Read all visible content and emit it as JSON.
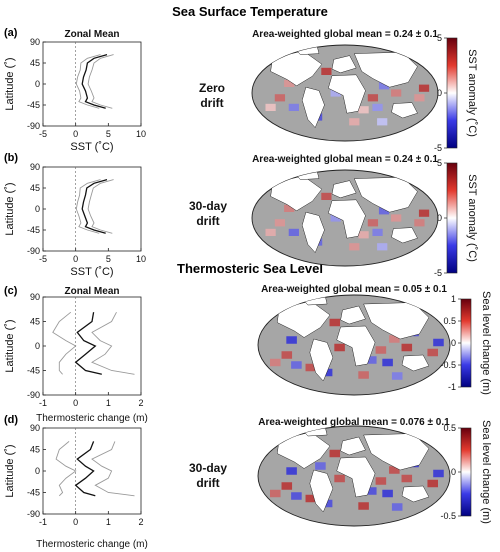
{
  "sections": [
    {
      "title": "Sea Surface Temperature"
    },
    {
      "title": "Thermosteric Sea Level"
    }
  ],
  "chart_data": [
    {
      "panel": "(a)",
      "type": "line",
      "title": "Zonal Mean",
      "xlabel": "SST (˚C)",
      "ylabel": "Latitude (˚)",
      "xlim": [
        -5,
        10
      ],
      "ylim": [
        -90,
        90
      ],
      "xticks": [
        -5,
        0,
        5,
        10
      ],
      "yticks": [
        90,
        45,
        0,
        -45,
        -90
      ],
      "series": [
        {
          "style": "mean",
          "x": [
            4.8,
            2.8,
            1.8,
            1.6,
            1.2,
            1.0,
            1.5,
            1.8,
            1.5,
            2.8,
            4.6
          ],
          "y": [
            63,
            55,
            45,
            30,
            15,
            0,
            -15,
            -30,
            -38,
            -45,
            -52
          ]
        },
        {
          "style": "spread",
          "x": [
            5.8,
            3.8,
            2.8,
            2.5,
            2.1,
            1.9,
            2.4,
            2.8,
            2.5,
            3.8,
            5.6
          ],
          "y": [
            63,
            55,
            45,
            30,
            15,
            0,
            -15,
            -30,
            -38,
            -45,
            -52
          ]
        },
        {
          "style": "spread",
          "x": [
            3.8,
            1.8,
            0.8,
            0.7,
            0.3,
            0.1,
            0.6,
            0.8,
            0.5,
            1.8,
            3.6
          ],
          "y": [
            63,
            55,
            45,
            30,
            15,
            0,
            -15,
            -30,
            -38,
            -45,
            -52
          ]
        }
      ]
    },
    {
      "panel": "(b)",
      "type": "line",
      "title": "",
      "xlabel": "SST (˚C)",
      "ylabel": "Latitude (˚)",
      "xlim": [
        -5,
        10
      ],
      "ylim": [
        -90,
        90
      ],
      "xticks": [
        -5,
        0,
        5,
        10
      ],
      "yticks": [
        90,
        45,
        0,
        -45,
        -90
      ],
      "series": [
        {
          "style": "mean",
          "x": [
            4.8,
            2.8,
            1.7,
            1.5,
            1.2,
            1.0,
            1.4,
            1.8,
            1.5,
            2.8,
            4.6
          ],
          "y": [
            63,
            55,
            45,
            30,
            15,
            0,
            -15,
            -30,
            -38,
            -45,
            -52
          ]
        },
        {
          "style": "spread",
          "x": [
            5.8,
            3.8,
            2.7,
            2.4,
            2.1,
            1.9,
            2.3,
            2.8,
            2.5,
            3.8,
            5.6
          ],
          "y": [
            63,
            55,
            45,
            30,
            15,
            0,
            -15,
            -30,
            -38,
            -45,
            -52
          ]
        },
        {
          "style": "spread",
          "x": [
            3.8,
            1.8,
            0.7,
            0.6,
            0.3,
            0.1,
            0.5,
            0.8,
            0.5,
            1.8,
            3.6
          ],
          "y": [
            63,
            55,
            45,
            30,
            15,
            0,
            -15,
            -30,
            -38,
            -45,
            -52
          ]
        }
      ]
    },
    {
      "panel": "(c)",
      "type": "line",
      "title": "Zonal Mean",
      "xlabel": "Thermosteric change (m)",
      "ylabel": "Latitude (˚)",
      "xlim": [
        -1,
        2
      ],
      "ylim": [
        -90,
        90
      ],
      "xticks": [
        -1,
        0,
        1,
        2
      ],
      "yticks": [
        90,
        45,
        0,
        -45,
        -90
      ],
      "series": [
        {
          "style": "mean",
          "x": [
            0.55,
            0.5,
            0.05,
            0.25,
            0.6,
            0.3,
            0.0,
            0.3,
            0.8
          ],
          "y": [
            62,
            45,
            25,
            10,
            0,
            -15,
            -30,
            -45,
            -52
          ]
        },
        {
          "style": "spread",
          "x": [
            1.25,
            1.1,
            0.5,
            0.75,
            1.1,
            0.9,
            0.5,
            1.1,
            1.8
          ],
          "y": [
            62,
            45,
            25,
            10,
            0,
            -15,
            -30,
            -45,
            -52
          ]
        },
        {
          "style": "spread",
          "x": [
            -0.15,
            -0.5,
            -0.7,
            -0.3,
            0.0,
            -0.3,
            -0.5,
            -0.5,
            -0.4
          ],
          "y": [
            62,
            45,
            25,
            10,
            0,
            -15,
            -30,
            -45,
            -52
          ]
        }
      ]
    },
    {
      "panel": "(d)",
      "type": "line",
      "title": "",
      "xlabel": "Thermosteric change (m)",
      "ylabel": "Latitude (˚)",
      "xlim": [
        -1,
        2
      ],
      "ylim": [
        -90,
        90
      ],
      "xticks": [
        -1,
        0,
        1,
        2
      ],
      "yticks": [
        90,
        45,
        0,
        -45,
        -90
      ],
      "series": [
        {
          "style": "mean",
          "x": [
            0.55,
            0.45,
            0.05,
            0.3,
            0.55,
            0.3,
            0.0,
            0.25,
            0.6
          ],
          "y": [
            62,
            45,
            25,
            10,
            0,
            -15,
            -30,
            -45,
            -52
          ]
        },
        {
          "style": "spread",
          "x": [
            1.2,
            1.1,
            0.5,
            0.8,
            1.1,
            1.0,
            0.6,
            1.0,
            1.8
          ],
          "y": [
            62,
            45,
            25,
            10,
            0,
            -15,
            -30,
            -45,
            -52
          ]
        },
        {
          "style": "spread",
          "x": [
            -0.2,
            -0.5,
            -0.6,
            -0.3,
            0.0,
            -0.3,
            -0.5,
            -0.4,
            -0.5
          ],
          "y": [
            62,
            45,
            25,
            10,
            0,
            -15,
            -30,
            -45,
            -52
          ]
        }
      ]
    }
  ],
  "maps": [
    {
      "caption": "Area-weighted global mean = 0.24 ± 0.1",
      "case_label": "Zero drift",
      "colorbar": {
        "label": "SST anomaly (˚C)",
        "ticks": [
          "5",
          "0",
          "-5"
        ]
      }
    },
    {
      "caption": "Area-weighted global mean = 0.24 ± 0.1",
      "case_label": "30-day drift",
      "colorbar": {
        "label": "SST anomaly (˚C)",
        "ticks": [
          "5",
          "0",
          "-5"
        ]
      }
    },
    {
      "caption": "Area-weighted global mean = 0.05 ± 0.1",
      "case_label": "",
      "colorbar": {
        "label": "Sea level change (m)",
        "ticks": [
          "1",
          "0.5",
          "0",
          "-0.5",
          "-1"
        ]
      }
    },
    {
      "caption": "Area-weighted global mean = 0.076 ± 0.1",
      "case_label": "30-day drift",
      "colorbar": {
        "label": "Sea level change (m)",
        "ticks": [
          "0.5",
          "0",
          "-0.5"
        ]
      }
    }
  ],
  "colors": {
    "ocean": "#a6a6a6",
    "land": "#ffffff",
    "warm": "#b2182b",
    "cool": "#2b2bd6",
    "mean_line": "#111111",
    "spread_line": "#9a9a9a"
  }
}
